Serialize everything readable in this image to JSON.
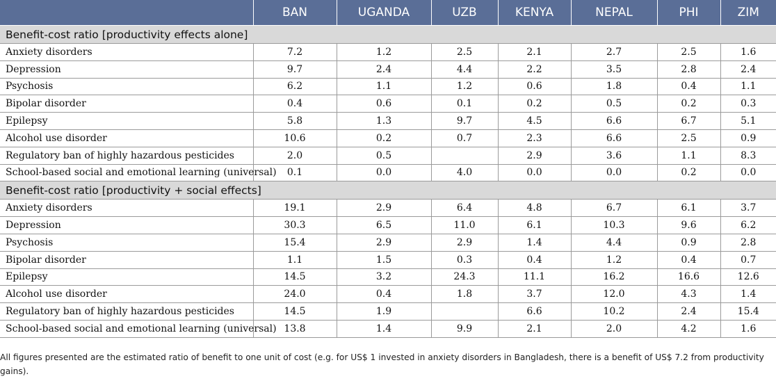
{
  "columns": [
    "",
    "BAN",
    "UGANDA",
    "UZB",
    "KENYA",
    "NEPAL",
    "PHI",
    "ZIM"
  ],
  "sections": [
    {
      "title": "Benefit-cost ratio [productivity effects alone]",
      "rows": [
        {
          "label": "Anxiety disorders",
          "values": [
            "7.2",
            "1.2",
            "2.5",
            "2.1",
            "2.7",
            "2.5",
            "1.6"
          ]
        },
        {
          "label": "Depression",
          "values": [
            "9.7",
            "2.4",
            "4.4",
            "2.2",
            "3.5",
            "2.8",
            "2.4"
          ]
        },
        {
          "label": "Psychosis",
          "values": [
            "6.2",
            "1.1",
            "1.2",
            "0.6",
            "1.8",
            "0.4",
            "1.1"
          ]
        },
        {
          "label": "Bipolar disorder",
          "values": [
            "0.4",
            "0.6",
            "0.1",
            "0.2",
            "0.5",
            "0.2",
            "0.3"
          ]
        },
        {
          "label": "Epilepsy",
          "values": [
            "5.8",
            "1.3",
            "9.7",
            "4.5",
            "6.6",
            "6.7",
            "5.1"
          ]
        },
        {
          "label": "Alcohol use disorder",
          "values": [
            "10.6",
            "0.2",
            "0.7",
            "2.3",
            "6.6",
            "2.5",
            "0.9"
          ]
        },
        {
          "label": "Regulatory ban of highly hazardous pesticides",
          "values": [
            "2.0",
            "0.5",
            "",
            "2.9",
            "3.6",
            "1.1",
            "8.3"
          ]
        },
        {
          "label": "School-based social and emotional learning (universal)",
          "values": [
            "0.1",
            "0.0",
            "4.0",
            "0.0",
            "0.0",
            "0.2",
            "0.0"
          ]
        }
      ]
    },
    {
      "title": "Benefit-cost ratio [productivity + social effects]",
      "rows": [
        {
          "label": "Anxiety disorders",
          "values": [
            "19.1",
            "2.9",
            "6.4",
            "4.8",
            "6.7",
            "6.1",
            "3.7"
          ]
        },
        {
          "label": "Depression",
          "values": [
            "30.3",
            "6.5",
            "11.0",
            "6.1",
            "10.3",
            "9.6",
            "6.2"
          ]
        },
        {
          "label": "Psychosis",
          "values": [
            "15.4",
            "2.9",
            "2.9",
            "1.4",
            "4.4",
            "0.9",
            "2.8"
          ]
        },
        {
          "label": "Bipolar disorder",
          "values": [
            "1.1",
            "1.5",
            "0.3",
            "0.4",
            "1.2",
            "0.4",
            "0.7"
          ]
        },
        {
          "label": "Epilepsy",
          "values": [
            "14.5",
            "3.2",
            "24.3",
            "11.1",
            "16.2",
            "16.6",
            "12.6"
          ]
        },
        {
          "label": "Alcohol use disorder",
          "values": [
            "24.0",
            "0.4",
            "1.8",
            "3.7",
            "12.0",
            "4.3",
            "1.4"
          ]
        },
        {
          "label": "Regulatory ban of highly hazardous pesticides",
          "values": [
            "14.5",
            "1.9",
            "",
            "6.6",
            "10.2",
            "2.4",
            "15.4"
          ]
        },
        {
          "label": "School-based social and emotional learning (universal)",
          "values": [
            "13.8",
            "1.4",
            "9.9",
            "2.1",
            "2.0",
            "4.2",
            "1.6"
          ]
        }
      ]
    }
  ],
  "footnote": "All figures presented are the estimated ratio of benefit to one unit of cost (e.g. for US$ 1 invested in anxiety disorders in Bangladesh, there is a benefit of US$ 7.2 from productivity gains).",
  "colors": {
    "header_bg": "#5a6e97",
    "section_bg": "#d9d9d9"
  }
}
